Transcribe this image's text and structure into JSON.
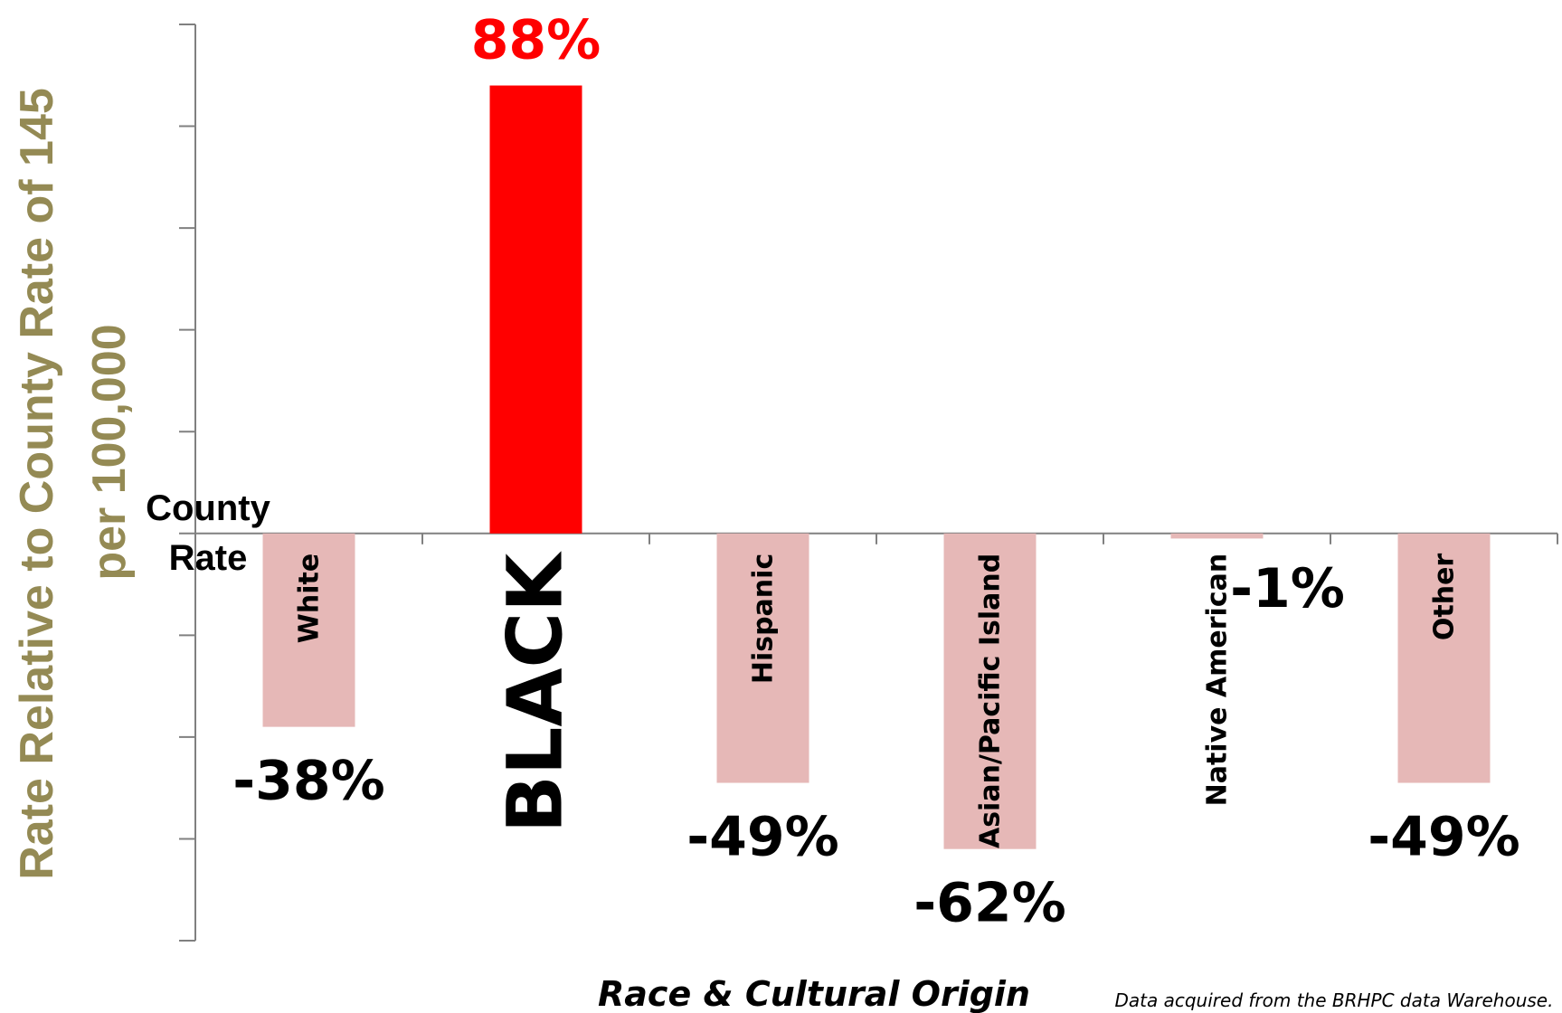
{
  "chart_data": {
    "type": "bar",
    "categories": [
      "White",
      "BLACK",
      "Hispanic",
      "Asian/Pacific Island",
      "Native American",
      "Other"
    ],
    "values": [
      -38,
      88,
      -49,
      -62,
      -1,
      -49
    ],
    "value_labels": [
      "-38%",
      "88%",
      "-49%",
      "-62%",
      "-1%",
      "-49%"
    ],
    "highlight_index": 1,
    "colors": {
      "highlight": "#ff0000",
      "other": "#e6b8b7",
      "axis": "#808080",
      "ylabel": "#948a54",
      "highlight_label": "#ff0000",
      "text": "#000000"
    },
    "ylabel_line1": "Rate Relative to County Rate of 145",
    "ylabel_line2": "per 100,000",
    "xlabel": "Race & Cultural Origin",
    "baseline_label_line1": "County",
    "baseline_label_line2": "Rate",
    "source_note": "Data acquired from the BRHPC data Warehouse.",
    "ylim": [
      -80,
      100
    ],
    "grid": false,
    "legend": "none"
  }
}
